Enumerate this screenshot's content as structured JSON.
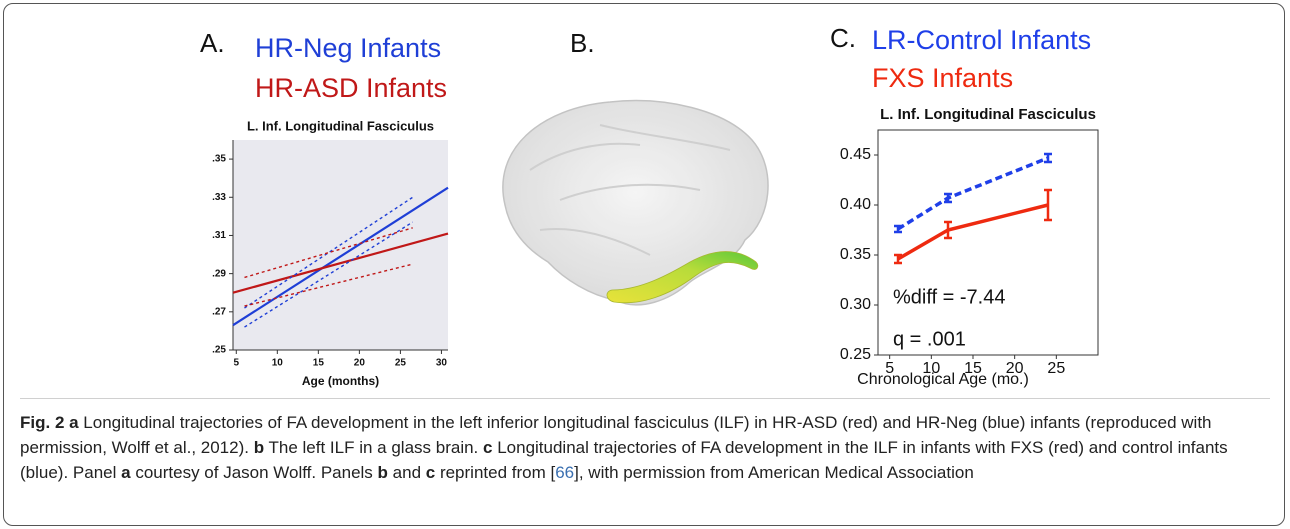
{
  "chart_data": [
    {
      "type": "line",
      "panel_label": "A.",
      "title": "L. Inf. Longitudinal Fasciculus",
      "xlabel": "Age (months)",
      "xlim": [
        4.6,
        30.8
      ],
      "xticks": [
        5,
        10,
        15,
        20,
        25,
        30
      ],
      "ylim": [
        0.25,
        0.36
      ],
      "yticks": [
        {
          "value": 0.25,
          "label": ".25"
        },
        {
          "value": 0.27,
          "label": ".27"
        },
        {
          "value": 0.29,
          "label": ".29"
        },
        {
          "value": 0.31,
          "label": ".31"
        },
        {
          "value": 0.33,
          "label": ".33"
        },
        {
          "value": 0.35,
          "label": ".35"
        }
      ],
      "series": [
        {
          "name": "HR-Neg Infants",
          "color": "#1f3fd6",
          "x": [
            4.6,
            30.8
          ],
          "values": [
            0.263,
            0.335
          ]
        },
        {
          "name": "HR-ASD Infants",
          "color": "#c01818",
          "x": [
            4.6,
            30.8
          ],
          "values": [
            0.28,
            0.311
          ]
        },
        {
          "color": "#1f3fd6",
          "dash": "dotted",
          "x": [
            6,
            26.5
          ],
          "values": [
            0.272,
            0.33
          ]
        },
        {
          "color": "#1f3fd6",
          "dash": "dotted",
          "x": [
            6,
            26.5
          ],
          "values": [
            0.262,
            0.317
          ]
        },
        {
          "color": "#c01818",
          "dash": "dotted",
          "x": [
            6,
            26.5
          ],
          "values": [
            0.288,
            0.314
          ]
        },
        {
          "color": "#c01818",
          "dash": "dotted",
          "x": [
            6,
            26.5
          ],
          "values": [
            0.273,
            0.295
          ]
        }
      ]
    },
    {
      "type": "line",
      "panel_label": "C.",
      "title": "L. Inf. Longitudinal Fasciculus",
      "xlabel": "Chronological Age (mo.)",
      "xlim": [
        3.6,
        30
      ],
      "xticks": [
        5,
        10,
        15,
        20,
        25
      ],
      "ylim": [
        0.25,
        0.475
      ],
      "yticks": [
        {
          "value": 0.25,
          "label": "0.25"
        },
        {
          "value": 0.3,
          "label": "0.30"
        },
        {
          "value": 0.35,
          "label": "0.35"
        },
        {
          "value": 0.4,
          "label": "0.40"
        },
        {
          "value": 0.45,
          "label": "0.45"
        }
      ],
      "annotations": [
        "%diff = -7.44",
        "q = .001"
      ],
      "series": [
        {
          "name": "LR-Control Infants",
          "color": "#1f3fe8",
          "dash": "dashed",
          "x": [
            6,
            12,
            24
          ],
          "values": [
            0.376,
            0.407,
            0.447
          ],
          "errors": [
            0.003,
            0.004,
            0.004
          ]
        },
        {
          "name": "FXS Infants",
          "color": "#ee2a10",
          "x": [
            6,
            12,
            24
          ],
          "values": [
            0.346,
            0.375,
            0.4
          ],
          "errors": [
            0.004,
            0.008,
            0.015
          ]
        }
      ]
    }
  ],
  "panel_b": {
    "label": "B."
  },
  "caption": {
    "runs": [
      {
        "text": "Fig. 2 a",
        "bold": true
      },
      {
        "text": " Longitudinal trajectories of FA development in the left inferior longitudinal fasciculus (ILF) in HR-ASD (red) and HR-Neg (blue) infants (reproduced with permission, Wolff et al., 2012). "
      },
      {
        "text": "b",
        "bold": true
      },
      {
        "text": " The left ILF in a glass brain. "
      },
      {
        "text": "c",
        "bold": true
      },
      {
        "text": " Longitudinal trajectories of FA development in the ILF in infants with FXS (red) and control infants (blue). Panel "
      },
      {
        "text": "a",
        "bold": true
      },
      {
        "text": " courtesy of Jason Wolff. Panels "
      },
      {
        "text": "b",
        "bold": true
      },
      {
        "text": " and "
      },
      {
        "text": "c",
        "bold": true
      },
      {
        "text": " reprinted from ["
      },
      {
        "text": "66",
        "link": true
      },
      {
        "text": "], with permission from American Medical Association"
      }
    ]
  }
}
